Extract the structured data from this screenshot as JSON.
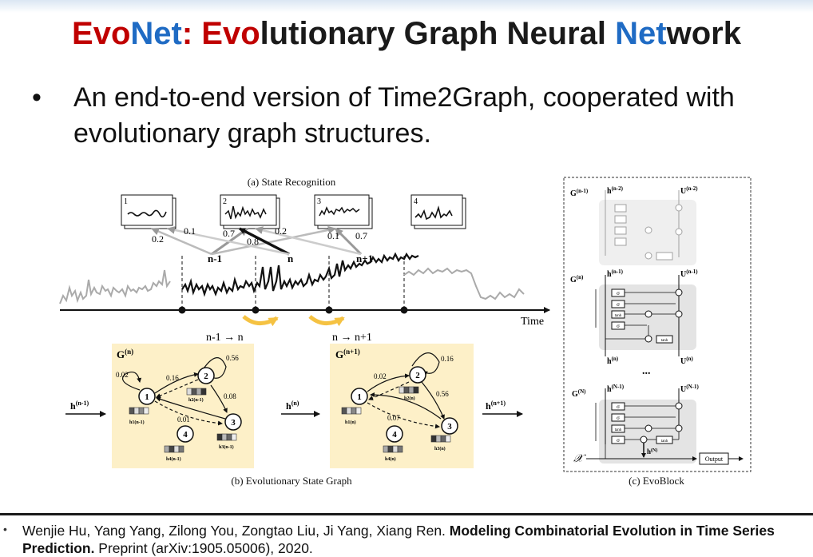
{
  "slide": {
    "title_parts": [
      {
        "text": "Evo",
        "color": "#c00000"
      },
      {
        "text": "Net",
        "color": "#1f6bc4"
      },
      {
        "text": ": ",
        "color": "#c00000"
      },
      {
        "text": "Evo",
        "color": "#c00000"
      },
      {
        "text": "lutionary Graph Neural ",
        "color": "#1a1a1a"
      },
      {
        "text": "Net",
        "color": "#1f6bc4"
      },
      {
        "text": "work",
        "color": "#1a1a1a"
      }
    ],
    "bullet_marker": "•",
    "bullet_text": "An end-to-end version of Time2Graph, cooperated with evolutionary graph structures."
  },
  "figure": {
    "panel_a": {
      "caption": "(a) State Recognition",
      "states": [
        "1",
        "2",
        "3",
        "4"
      ],
      "edge_labels": [
        "0.1",
        "0.2",
        "0.7",
        "0.8",
        "0.2",
        "0.1",
        "0.7"
      ],
      "segment_labels": [
        "n-1",
        "n",
        "n+1"
      ],
      "axis_label": "Time"
    },
    "panel_b": {
      "caption": "(b) Evolutionary State Graph",
      "transition_1": "n-1 → n",
      "transition_2": "n → n+1",
      "inputs": {
        "h_prev": "h",
        "h_prev_sup": "(n-1)",
        "h_mid": "h",
        "h_mid_sup": "(n)",
        "h_next": "h",
        "h_next_sup": "(n+1)"
      },
      "graph_left": {
        "label": "G",
        "label_sup": "(n)",
        "nodes": [
          "1",
          "2",
          "3",
          "4"
        ],
        "edge_labels": [
          "0.56",
          "0.02",
          "0.16",
          "0.08",
          "0.01"
        ],
        "node_vectors": [
          "h1(n-1)",
          "h2(n-1)",
          "h3(n-1)",
          "h4(n-1)"
        ]
      },
      "graph_right": {
        "label": "G",
        "label_sup": "(n+1)",
        "nodes": [
          "1",
          "2",
          "3",
          "4"
        ],
        "edge_labels": [
          "0.16",
          "0.02",
          "0.56",
          "0.07"
        ],
        "node_vectors": [
          "h1(n)",
          "h2(n)",
          "h3(n)",
          "h4(n)"
        ]
      }
    },
    "panel_c": {
      "caption": "(c) EvoBlock",
      "rows": [
        {
          "g": "G",
          "g_sup": "(n-1)",
          "h": "h",
          "h_sup": "(n-2)",
          "u": "U",
          "u_sup": "(n-2)"
        },
        {
          "g": "G",
          "g_sup": "(n)",
          "h": "h",
          "h_sup": "(n-1)",
          "u": "U",
          "u_sup": "(n-1)"
        },
        {
          "g": "G",
          "g_sup": "(N)",
          "h": "h",
          "h_sup": "(N-1)",
          "u": "U",
          "u_sup": "(N-1)"
        }
      ],
      "mid_h": "h",
      "mid_h_sup": "(n)",
      "mid_u": "U",
      "mid_u_sup": "(n)",
      "ellipsis": "...",
      "gate_sigma": "σ",
      "gate_tanh": "tanh",
      "out_h": "h",
      "out_h_sup": "(N)",
      "x_label": "𝒳",
      "output_label": "Output"
    }
  },
  "citation": {
    "marker": "•",
    "authors": "Wenjie Hu, Yang Yang, Zilong You, Zongtao Liu, Ji Yang, Xiang Ren. ",
    "title": "Modeling Combinatorial Evolution in Time Series Prediction.",
    "venue": " Preprint (arXiv:1905.05006), 2020."
  },
  "colors": {
    "accent_red": "#c00000",
    "accent_blue": "#1f6bc4",
    "graph_panel": "#fdf0c8",
    "arrow_yellow": "#f5c242"
  }
}
